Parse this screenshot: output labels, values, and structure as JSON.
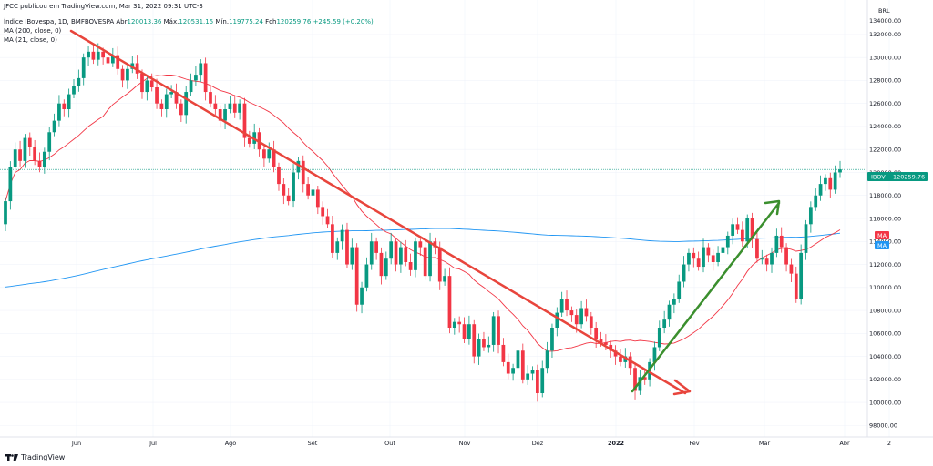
{
  "header": {
    "published": "JFCC publicou em TradingView.com, Mar 31, 2022 09:31 UTC-3",
    "symbol_line_prefix": "Índice IBovespa, 1D, BMFBOVESPA",
    "ohlc": {
      "open_label": "Abr",
      "open": "120013.36",
      "high_label": "Máx.",
      "high": "120531.15",
      "low_label": "Mín.",
      "low": "119775.24",
      "close_label": "Fch",
      "close": "120259.76",
      "change": "+245.59 (+0.20%)"
    },
    "indicator_1": "MA (200, close, 0)",
    "indicator_2": "MA (21, close, 0)"
  },
  "footer": {
    "brand": "TradingView"
  },
  "price_axis": {
    "currency": "BRL",
    "top_tick": "134000.00",
    "tags": [
      {
        "label": "IBOV",
        "value": "120259.76",
        "color": "#089981"
      },
      {
        "label": "MA",
        "color": "#f23645"
      },
      {
        "label": "MA",
        "color": "#2196f3"
      }
    ]
  },
  "colors": {
    "up": "#089981",
    "down": "#f23645",
    "ma200": "#2196f3",
    "ma21": "#f23645",
    "trend_down": "#e8453c",
    "trend_up": "#3b8f2e",
    "last_price_line": "#089981"
  },
  "chart_data": {
    "type": "candlestick",
    "title": "Índice IBovespa, 1D, BMFBOVESPA",
    "ylim": [
      97000,
      135000
    ],
    "y_ticks": [
      "98000.00",
      "100000.00",
      "102000.00",
      "104000.00",
      "106000.00",
      "108000.00",
      "110000.00",
      "112000.00",
      "114000.00",
      "116000.00",
      "118000.00",
      "120000.00",
      "122000.00",
      "124000.00",
      "126000.00",
      "128000.00",
      "130000.00",
      "132000.00"
    ],
    "x_ticks": [
      "Jun",
      "Jul",
      "Ago",
      "Set",
      "Out",
      "Nov",
      "Dez",
      "2022",
      "Fev",
      "Mar",
      "Abr",
      "2"
    ],
    "closes": [
      117500,
      120500,
      122000,
      121000,
      123000,
      122200,
      121000,
      120500,
      121800,
      123500,
      124500,
      126000,
      125500,
      126800,
      127500,
      128200,
      130000,
      130500,
      129800,
      130500,
      130000,
      129500,
      130200,
      129000,
      128000,
      129000,
      129500,
      128600,
      127000,
      128000,
      127400,
      126000,
      125500,
      126800,
      127000,
      126000,
      125000,
      127000,
      128000,
      128500,
      129500,
      127000,
      126000,
      125500,
      124500,
      125500,
      126000,
      125200,
      126000,
      123000,
      122500,
      123500,
      122000,
      121200,
      122000,
      120500,
      119000,
      118000,
      117500,
      120000,
      121000,
      119000,
      118000,
      118500,
      117000,
      116200,
      115500,
      113000,
      114000,
      115000,
      112000,
      113500,
      108500,
      110000,
      112000,
      114000,
      113000,
      111000,
      112500,
      114000,
      112000,
      113500,
      112200,
      111500,
      114000,
      113500,
      111000,
      114000,
      113500,
      110500,
      111000,
      106500,
      107000,
      106800,
      105500,
      106800,
      104000,
      105500,
      104800,
      105000,
      107500,
      105000,
      103500,
      102500,
      103000,
      104500,
      102000,
      102500,
      102800,
      100800,
      103000,
      104500,
      106500,
      107800,
      109000,
      108000,
      107600,
      106800,
      108200,
      107500,
      106500,
      105500,
      105200,
      105000,
      104500,
      104000,
      103500,
      104000,
      103000,
      101000,
      102200,
      102000,
      103500,
      104800,
      106500,
      107200,
      108500,
      109000,
      110500,
      112000,
      113000,
      112500,
      111800,
      113500,
      112800,
      112200,
      113000,
      113500,
      114500,
      115500,
      115000,
      114000,
      116000,
      114200,
      112500,
      112500,
      112000,
      113000,
      114500,
      113500,
      112000,
      111200,
      109000,
      113000,
      115500,
      117000,
      118000,
      119000,
      119500,
      118500,
      120000,
      120260
    ]
  }
}
